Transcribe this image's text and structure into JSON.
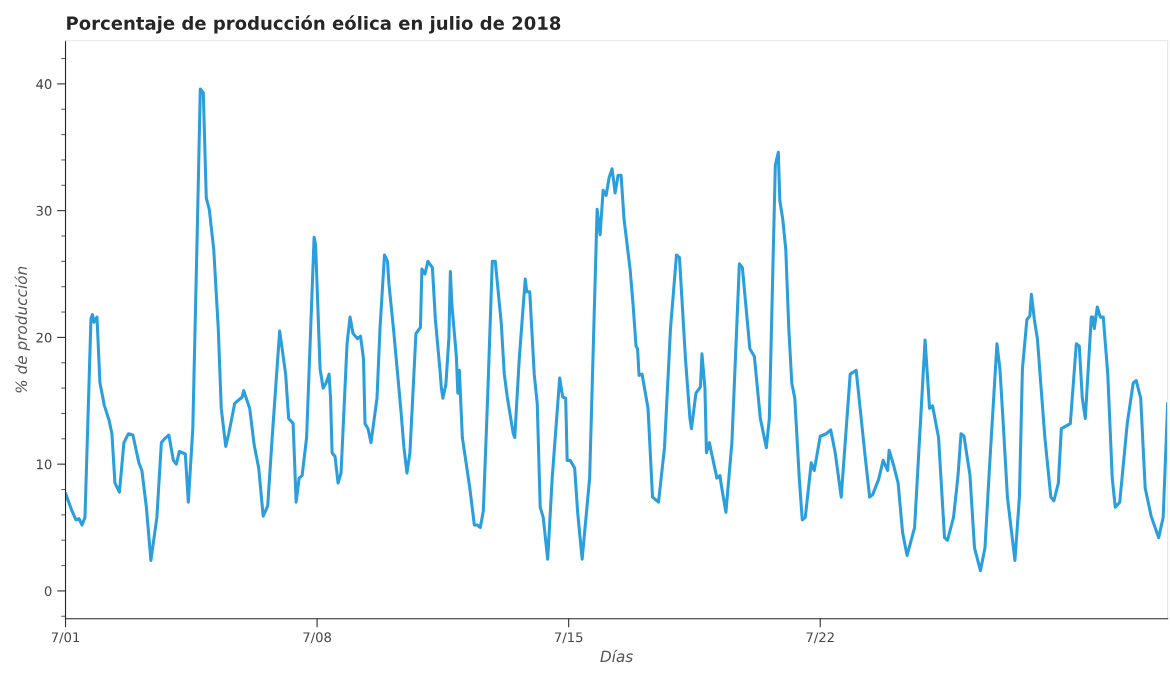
{
  "chart_data": {
    "type": "line",
    "title": "Porcentaje de producción eólica en julio de 2018",
    "xlabel": "Días",
    "ylabel": "% de producción",
    "xlim": [
      "2018-07-01T00:00",
      "2018-07-31T16:00"
    ],
    "ylim": [
      -2.2,
      43.4
    ],
    "yticks": [
      0,
      10,
      20,
      30,
      40
    ],
    "xticks": [
      {
        "value": "2018-07-01",
        "label": "7/01"
      },
      {
        "value": "2018-07-08",
        "label": "7/08"
      },
      {
        "value": "2018-07-15",
        "label": "7/15"
      },
      {
        "value": "2018-07-22",
        "label": "7/22"
      }
    ],
    "grid": false,
    "legend": false,
    "marker": "none",
    "line_style": "solid",
    "series": [
      {
        "color": "#2b9fdb",
        "x": [
          "2018-07-01T00:00",
          "2018-07-01T04:00",
          "2018-07-01T07:00",
          "2018-07-01T09:00",
          "2018-07-01T11:00",
          "2018-07-01T13:00",
          "2018-07-01T17:00",
          "2018-07-01T18:00",
          "2018-07-01T19:00",
          "2018-07-01T21:00",
          "2018-07-01T23:00",
          "2018-07-02T02:00",
          "2018-07-02T05:00",
          "2018-07-02T07:00",
          "2018-07-02T09:00",
          "2018-07-02T12:00",
          "2018-07-02T15:00",
          "2018-07-02T18:00",
          "2018-07-02T21:00",
          "2018-07-03T01:00",
          "2018-07-03T03:00",
          "2018-07-03T06:00",
          "2018-07-03T09:00",
          "2018-07-03T13:00",
          "2018-07-03T16:00",
          "2018-07-03T19:00",
          "2018-07-03T21:00",
          "2018-07-04T00:00",
          "2018-07-04T02:00",
          "2018-07-04T04:00",
          "2018-07-04T08:00",
          "2018-07-04T10:00",
          "2018-07-04T13:00",
          "2018-07-04T16:00",
          "2018-07-04T18:00",
          "2018-07-04T20:00",
          "2018-07-04T22:00",
          "2018-07-05T00:00",
          "2018-07-05T03:00",
          "2018-07-05T06:00",
          "2018-07-05T08:00",
          "2018-07-05T11:00",
          "2018-07-05T13:00",
          "2018-07-05T17:00",
          "2018-07-05T22:00",
          "2018-07-05T23:00",
          "2018-07-06T03:00",
          "2018-07-06T06:00",
          "2018-07-06T09:00",
          "2018-07-06T12:00",
          "2018-07-06T15:00",
          "2018-07-06T18:00",
          "2018-07-06T23:00",
          "2018-07-07T03:00",
          "2018-07-07T05:00",
          "2018-07-07T08:00",
          "2018-07-07T10:00",
          "2018-07-07T12:00",
          "2018-07-07T14:00",
          "2018-07-07T17:00",
          "2018-07-07T22:00",
          "2018-07-07T23:00",
          "2018-07-08T02:00",
          "2018-07-08T04:00",
          "2018-07-08T06:00",
          "2018-07-08T08:00",
          "2018-07-08T09:00",
          "2018-07-08T10:00",
          "2018-07-08T12:00",
          "2018-07-08T14:00",
          "2018-07-08T16:00",
          "2018-07-08T20:00",
          "2018-07-08T22:00",
          "2018-07-09T00:00",
          "2018-07-09T03:00",
          "2018-07-09T05:00",
          "2018-07-09T07:00",
          "2018-07-09T08:00",
          "2018-07-09T10:00",
          "2018-07-09T12:00",
          "2018-07-09T16:00",
          "2018-07-09T18:00",
          "2018-07-09T21:00",
          "2018-07-09T23:00",
          "2018-07-10T00:00",
          "2018-07-10T03:00",
          "2018-07-10T06:00",
          "2018-07-10T08:00",
          "2018-07-10T10:00",
          "2018-07-10T12:00",
          "2018-07-10T14:00",
          "2018-07-10T18:00",
          "2018-07-10T21:00",
          "2018-07-10T22:00",
          "2018-07-11T00:00",
          "2018-07-11T02:00",
          "2018-07-11T05:00",
          "2018-07-11T07:00",
          "2018-07-11T10:00",
          "2018-07-11T11:00",
          "2018-07-11T12:00",
          "2018-07-11T14:00",
          "2018-07-11T16:00",
          "2018-07-11T17:00",
          "2018-07-11T18:00",
          "2018-07-11T21:00",
          "2018-07-11T22:00",
          "2018-07-11T23:00",
          "2018-07-12T01:00",
          "2018-07-12T06:00",
          "2018-07-12T09:00",
          "2018-07-12T11:00",
          "2018-07-12T13:00",
          "2018-07-12T15:00",
          "2018-07-12T18:00",
          "2018-07-12T21:00",
          "2018-07-12T23:00",
          "2018-07-13T03:00",
          "2018-07-13T05:00",
          "2018-07-13T07:00",
          "2018-07-13T11:00",
          "2018-07-13T12:00",
          "2018-07-13T15:00",
          "2018-07-13T19:00",
          "2018-07-13T20:00",
          "2018-07-13T22:00",
          "2018-07-14T01:00",
          "2018-07-14T03:00",
          "2018-07-14T05:00",
          "2018-07-14T07:00",
          "2018-07-14T10:00",
          "2018-07-14T13:00",
          "2018-07-14T18:00",
          "2018-07-14T20:00",
          "2018-07-14T22:00",
          "2018-07-14T23:00",
          "2018-07-15T01:00",
          "2018-07-15T04:00",
          "2018-07-15T06:00",
          "2018-07-15T09:00",
          "2018-07-15T14:00",
          "2018-07-15T19:00",
          "2018-07-15T21:00",
          "2018-07-15T23:00",
          "2018-07-16T01:00",
          "2018-07-16T03:00",
          "2018-07-16T05:00",
          "2018-07-16T07:00",
          "2018-07-16T09:00",
          "2018-07-16T11:00",
          "2018-07-16T13:00",
          "2018-07-16T17:00",
          "2018-07-16T19:00",
          "2018-07-16T21:00",
          "2018-07-16T22:00",
          "2018-07-16T23:00",
          "2018-07-17T01:00",
          "2018-07-17T05:00",
          "2018-07-17T08:00",
          "2018-07-17T12:00",
          "2018-07-17T16:00",
          "2018-07-17T20:00",
          "2018-07-18T00:00",
          "2018-07-18T02:00",
          "2018-07-18T06:00",
          "2018-07-18T09:00",
          "2018-07-18T10:00",
          "2018-07-18T13:00",
          "2018-07-18T16:00",
          "2018-07-18T17:00",
          "2018-07-18T19:00",
          "2018-07-18T20:00",
          "2018-07-18T22:00",
          "2018-07-18T23:00",
          "2018-07-19T03:00",
          "2018-07-19T05:00",
          "2018-07-19T06:00",
          "2018-07-19T09:00",
          "2018-07-19T13:00",
          "2018-07-19T18:00",
          "2018-07-19T20:00",
          "2018-07-20T01:00",
          "2018-07-20T04:00",
          "2018-07-20T08:00",
          "2018-07-20T12:00",
          "2018-07-20T14:00",
          "2018-07-20T18:00",
          "2018-07-20T20:00",
          "2018-07-20T21:00",
          "2018-07-20T23:00",
          "2018-07-21T01:00",
          "2018-07-21T03:00",
          "2018-07-21T05:00",
          "2018-07-21T07:00",
          "2018-07-21T10:00",
          "2018-07-21T12:00",
          "2018-07-21T14:00",
          "2018-07-21T18:00",
          "2018-07-21T20:00",
          "2018-07-22T00:00",
          "2018-07-22T04:00",
          "2018-07-22T07:00",
          "2018-07-22T10:00",
          "2018-07-22T14:00",
          "2018-07-22T20:00",
          "2018-07-23T00:00",
          "2018-07-23T06:00",
          "2018-07-23T09:00",
          "2018-07-23T11:00",
          "2018-07-23T15:00",
          "2018-07-23T18:00",
          "2018-07-23T21:00",
          "2018-07-23T22:00",
          "2018-07-24T01:00",
          "2018-07-24T04:00",
          "2018-07-24T07:00",
          "2018-07-24T10:00",
          "2018-07-24T15:00",
          "2018-07-24T22:00",
          "2018-07-25T01:00",
          "2018-07-25T03:00",
          "2018-07-25T07:00",
          "2018-07-25T11:00",
          "2018-07-25T13:00",
          "2018-07-25T17:00",
          "2018-07-25T20:00",
          "2018-07-25T22:00",
          "2018-07-26T00:00",
          "2018-07-26T04:00",
          "2018-07-26T07:00",
          "2018-07-26T11:00",
          "2018-07-26T14:00",
          "2018-07-26T17:00",
          "2018-07-26T22:00",
          "2018-07-27T00:00",
          "2018-07-27T02:00",
          "2018-07-27T05:00",
          "2018-07-27T10:00",
          "2018-07-27T13:00",
          "2018-07-27T15:00",
          "2018-07-27T18:00",
          "2018-07-27T20:00",
          "2018-07-27T21:00",
          "2018-07-27T23:00",
          "2018-07-28T01:00",
          "2018-07-28T06:00",
          "2018-07-28T10:00",
          "2018-07-28T12:00",
          "2018-07-28T15:00",
          "2018-07-28T17:00",
          "2018-07-28T23:00",
          "2018-07-29T03:00",
          "2018-07-29T05:00",
          "2018-07-29T07:00",
          "2018-07-29T09:00",
          "2018-07-29T13:00",
          "2018-07-29T14:00",
          "2018-07-29T15:00",
          "2018-07-29T17:00",
          "2018-07-29T19:00",
          "2018-07-29T21:00",
          "2018-07-30T00:00",
          "2018-07-30T03:00",
          "2018-07-30T05:00",
          "2018-07-30T08:00",
          "2018-07-30T13:00",
          "2018-07-30T17:00",
          "2018-07-30T19:00",
          "2018-07-30T22:00",
          "2018-07-31T01:00",
          "2018-07-31T05:00",
          "2018-07-31T10:00",
          "2018-07-31T13:00",
          "2018-07-31T16:00"
        ],
        "values": [
          7.7,
          6.4,
          5.6,
          5.7,
          5.2,
          5.8,
          21.5,
          21.8,
          21.2,
          21.6,
          16.4,
          14.6,
          13.5,
          12.4,
          8.5,
          7.8,
          11.7,
          12.4,
          12.3,
          10.1,
          9.5,
          6.6,
          2.4,
          5.8,
          11.7,
          12.1,
          12.3,
          10.3,
          10.0,
          11.0,
          10.8,
          7.0,
          12.8,
          28.5,
          39.6,
          39.3,
          31.0,
          30.1,
          26.9,
          20.7,
          14.4,
          11.4,
          12.4,
          14.8,
          15.3,
          15.8,
          14.4,
          11.5,
          9.7,
          5.9,
          6.7,
          12.1,
          20.5,
          17.1,
          13.6,
          13.2,
          7.0,
          8.9,
          9.1,
          12.1,
          27.9,
          27.3,
          17.5,
          16.0,
          16.4,
          17.1,
          15.2,
          10.9,
          10.6,
          8.5,
          9.3,
          19.5,
          21.6,
          20.3,
          19.9,
          20.1,
          18.3,
          13.2,
          12.8,
          11.7,
          15.2,
          20.7,
          26.5,
          26.0,
          24.2,
          20.7,
          16.8,
          14.2,
          11.3,
          9.3,
          10.9,
          20.3,
          20.8,
          25.4,
          25.0,
          26.0,
          25.5,
          21.4,
          17.5,
          16.0,
          15.2,
          16.3,
          19.9,
          25.2,
          22.6,
          18.5,
          15.6,
          17.4,
          12.1,
          8.1,
          5.2,
          5.2,
          5.0,
          6.3,
          15.6,
          26.0,
          26.0,
          21.1,
          17.1,
          15.3,
          12.4,
          12.1,
          18.3,
          24.6,
          23.6,
          23.6,
          17.1,
          14.8,
          6.6,
          5.8,
          2.5,
          8.9,
          16.8,
          15.3,
          15.2,
          10.3,
          10.3,
          9.7,
          6.2,
          2.5,
          8.9,
          30.1,
          28.1,
          31.6,
          31.2,
          32.6,
          33.3,
          31.4,
          32.8,
          32.8,
          29.3,
          25.4,
          22.6,
          19.3,
          19.1,
          17.0,
          17.1,
          14.4,
          7.4,
          7.0,
          11.3,
          20.7,
          26.5,
          26.3,
          18.3,
          13.6,
          12.8,
          15.6,
          16.1,
          18.7,
          16.0,
          10.9,
          11.7,
          11.1,
          8.9,
          9.1,
          8.3,
          6.2,
          11.7,
          25.8,
          25.5,
          19.1,
          18.5,
          13.6,
          11.3,
          13.6,
          33.6,
          34.6,
          30.8,
          29.3,
          26.9,
          20.7,
          16.4,
          15.2,
          8.9,
          5.6,
          5.8,
          10.1,
          9.5,
          12.2,
          12.4,
          12.7,
          10.9,
          7.4,
          17.1,
          17.4,
          10.6,
          7.4,
          7.6,
          8.8,
          10.3,
          9.5,
          11.1,
          9.9,
          8.5,
          4.6,
          2.8,
          5.0,
          19.8,
          14.4,
          14.6,
          12.1,
          4.2,
          4.0,
          5.8,
          9.1,
          12.4,
          12.2,
          9.1,
          3.4,
          1.6,
          3.4,
          9.7,
          19.5,
          17.5,
          13.6,
          7.4,
          2.4,
          7.4,
          17.5,
          21.4,
          21.7,
          23.4,
          21.4,
          19.9,
          12.1,
          7.4,
          7.1,
          8.5,
          12.8,
          13.2,
          19.5,
          19.3,
          15.2,
          13.6,
          21.6,
          21.6,
          20.7,
          22.4,
          21.6,
          21.6,
          17.1,
          8.9,
          6.6,
          7.0,
          13.2,
          16.4,
          16.6,
          15.2,
          8.1,
          5.9,
          4.2,
          5.8,
          14.8
        ]
      }
    ]
  }
}
